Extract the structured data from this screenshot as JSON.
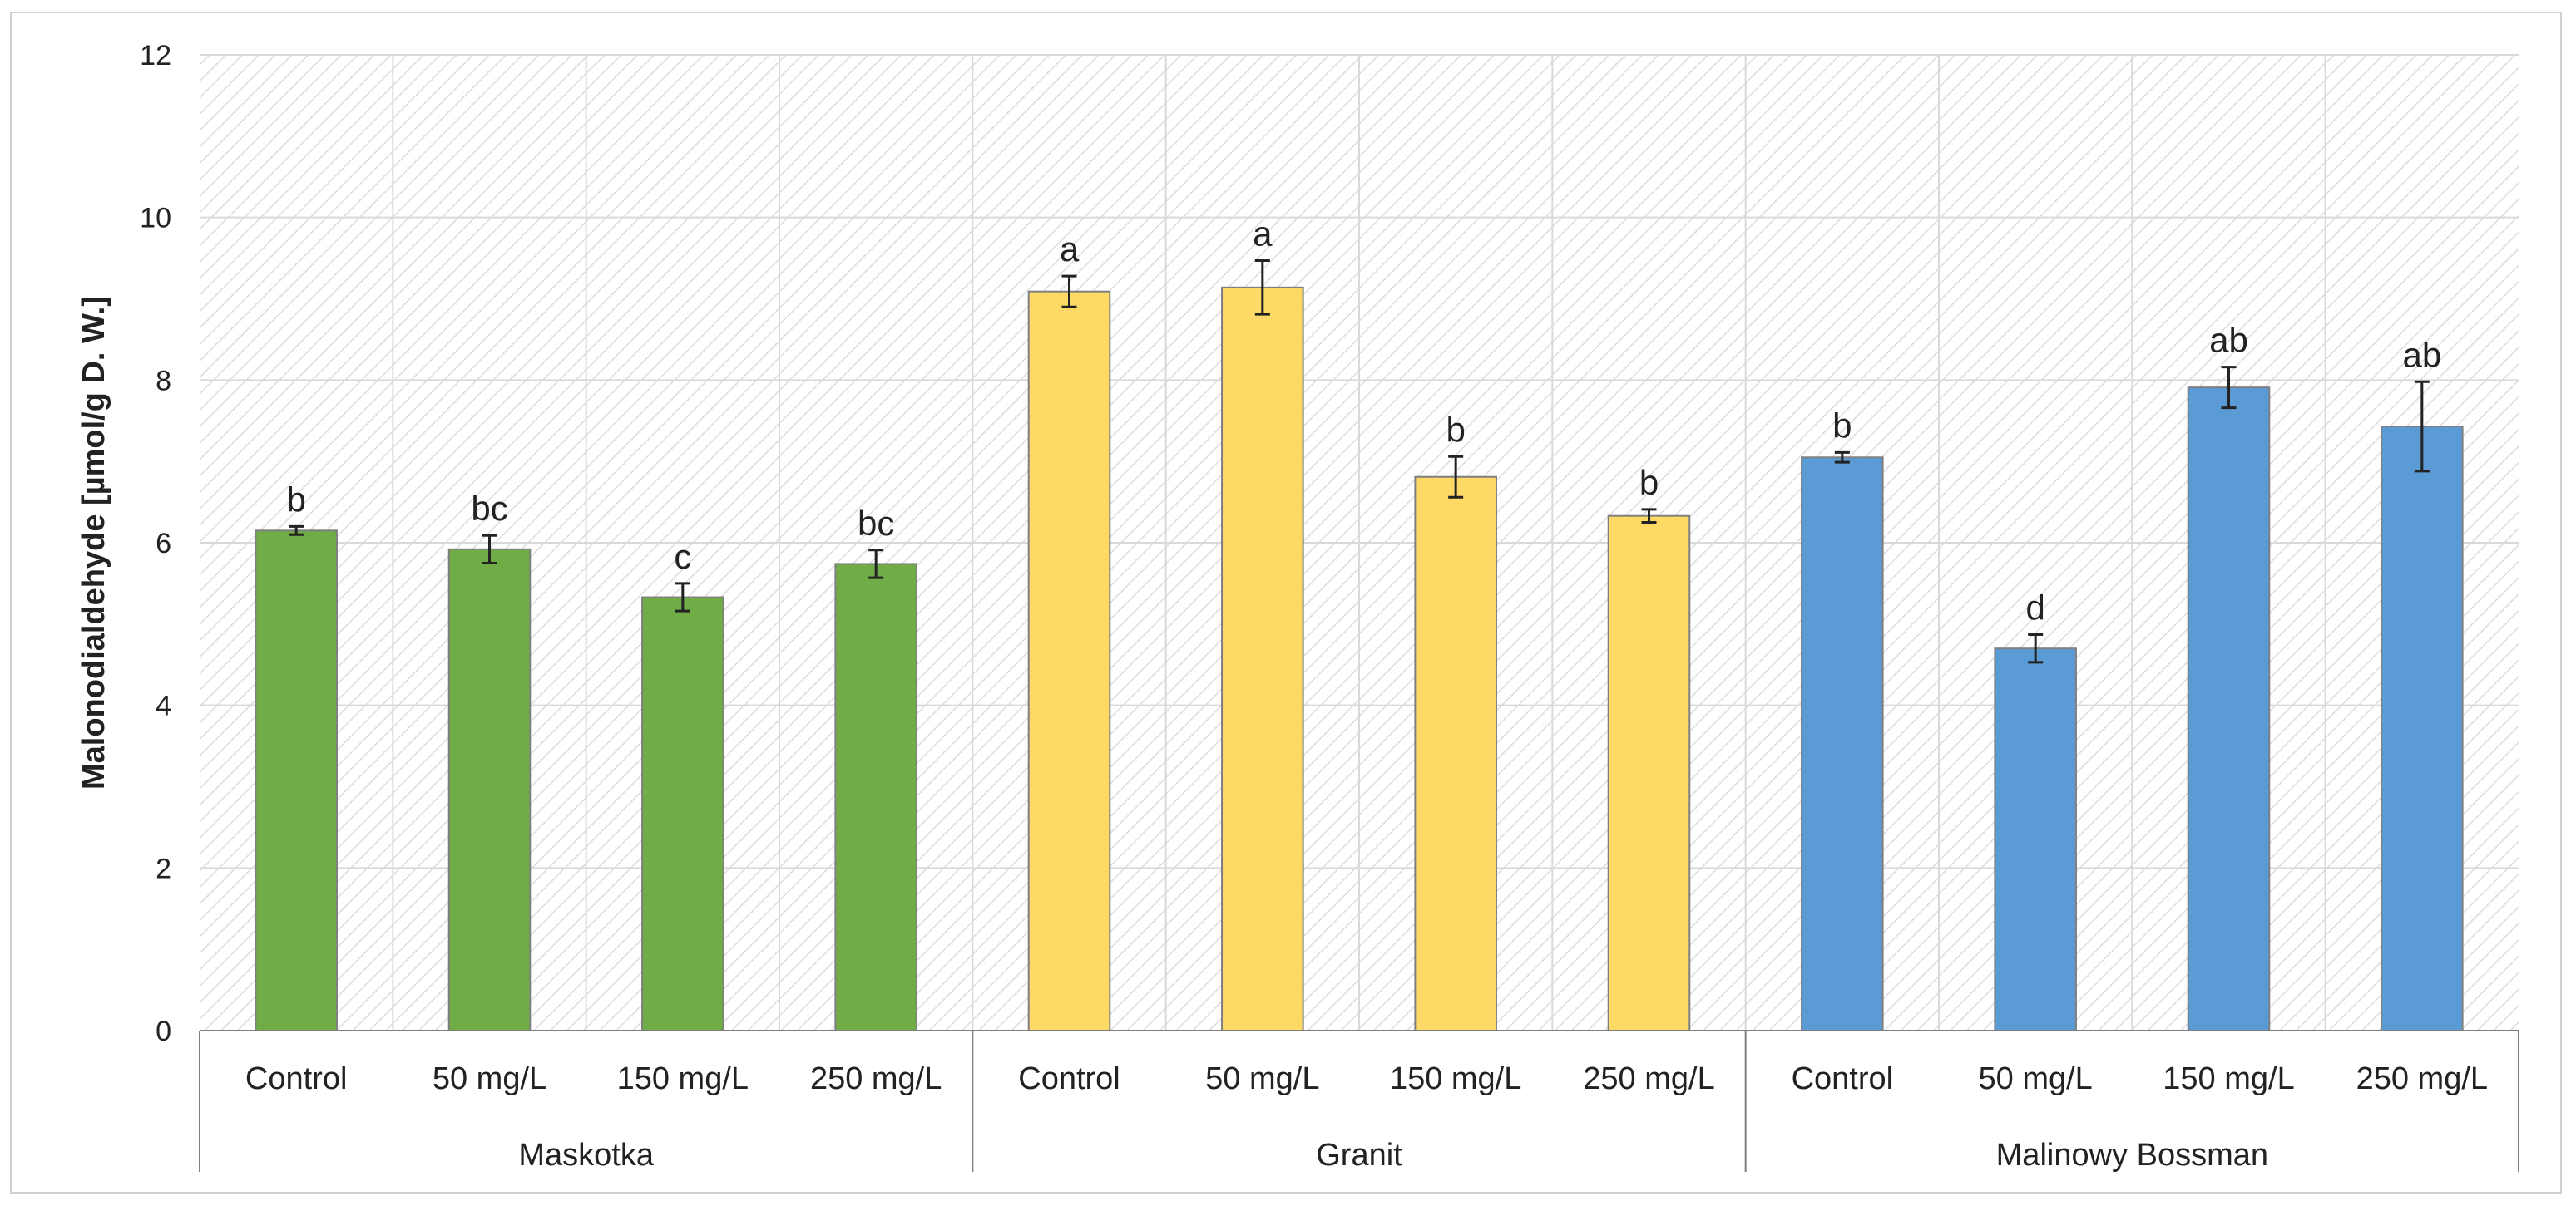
{
  "colors": {
    "Maskotka": "#70AD47",
    "Granit": "#FFD966",
    "Malinowy Bossman": "#5B9BD5"
  },
  "chart_data": {
    "type": "bar",
    "title": "",
    "xlabel": "",
    "ylabel": "Malonodialdehyde [µmol/g D. W.]",
    "ylim": [
      0,
      12
    ],
    "yticks": [
      0,
      2,
      4,
      6,
      8,
      10,
      12
    ],
    "grid": true,
    "groups": [
      {
        "name": "Maskotka",
        "categories": [
          "Control",
          "50 mg/L",
          "150 mg/L",
          "250 mg/L"
        ],
        "values": [
          6.15,
          5.92,
          5.33,
          5.74
        ],
        "errors": [
          0.05,
          0.17,
          0.17,
          0.17
        ],
        "letters": [
          "b",
          "bc",
          "c",
          "bc"
        ]
      },
      {
        "name": "Granit",
        "categories": [
          "Control",
          "50 mg/L",
          "150 mg/L",
          "250 mg/L"
        ],
        "values": [
          9.09,
          9.14,
          6.81,
          6.33
        ],
        "errors": [
          0.19,
          0.33,
          0.25,
          0.08
        ],
        "letters": [
          "a",
          "a",
          "b",
          "b"
        ]
      },
      {
        "name": "Malinowy Bossman",
        "categories": [
          "Control",
          "50 mg/L",
          "150 mg/L",
          "250 mg/L"
        ],
        "values": [
          7.05,
          4.7,
          7.91,
          7.43
        ],
        "errors": [
          0.06,
          0.17,
          0.25,
          0.55
        ],
        "letters": [
          "b",
          "d",
          "ab",
          "ab"
        ]
      }
    ]
  }
}
